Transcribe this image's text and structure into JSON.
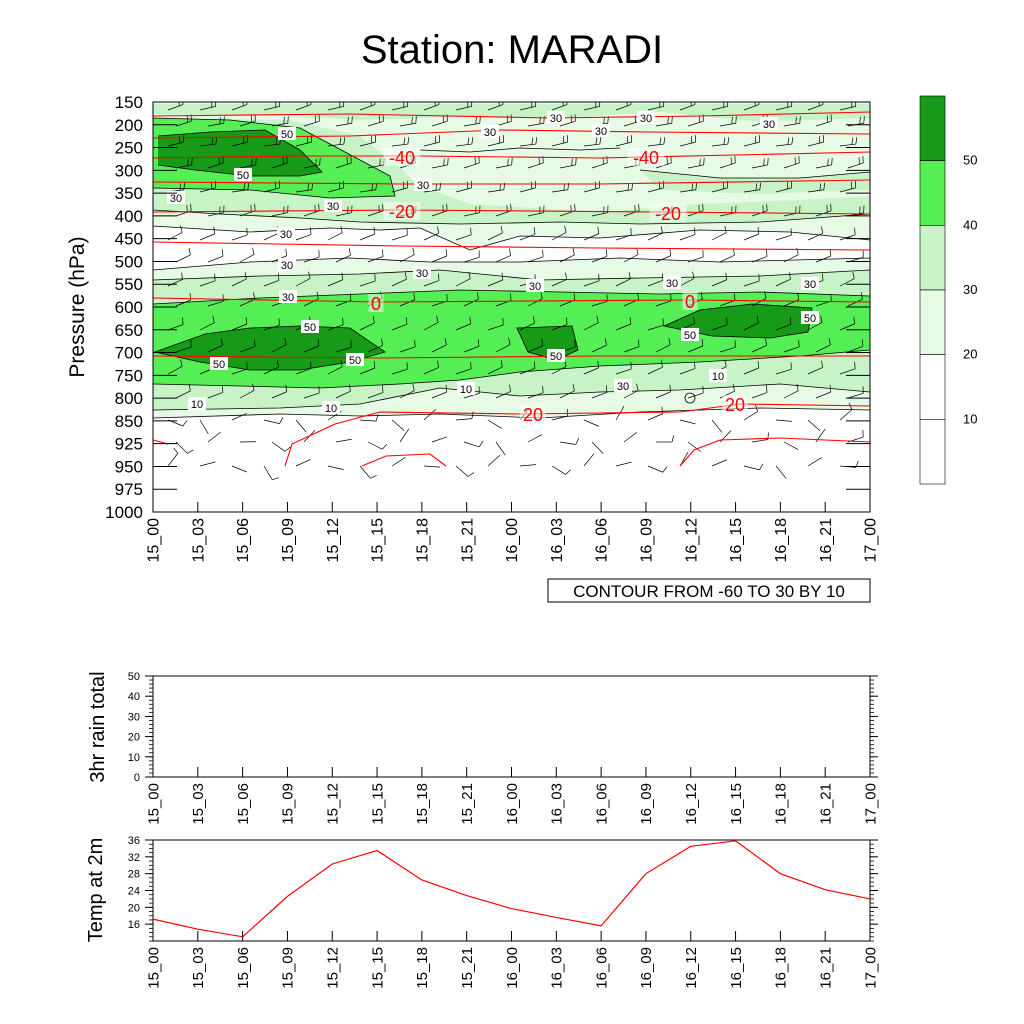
{
  "title": "Station: MARADI",
  "colors": {
    "fill_levels": [
      "#ffffff",
      "#ffffff",
      "#e6fae6",
      "#c7f3c7",
      "#55ee55",
      "#179a17"
    ],
    "isotherm": "#ff0000",
    "contour": "#000000",
    "barb": "#000000"
  },
  "time_labels": [
    "15_00",
    "15_03",
    "15_06",
    "15_09",
    "15_12",
    "15_15",
    "15_18",
    "15_21",
    "16_00",
    "16_03",
    "16_06",
    "16_09",
    "16_12",
    "16_15",
    "16_18",
    "16_21",
    "17_00"
  ],
  "chart_data": [
    {
      "type": "heatmap",
      "name": "cross-section",
      "ylabel": "Pressure (hPa)",
      "pressure_levels": [
        150,
        200,
        250,
        300,
        350,
        400,
        450,
        500,
        550,
        600,
        650,
        700,
        750,
        800,
        850,
        925,
        950,
        975,
        1000
      ],
      "contour_info": "CONTOUR FROM -60 TO 30 BY 10",
      "colorbar": {
        "ticks": [
          10,
          20,
          30,
          40,
          50
        ]
      },
      "contour_labels": [
        "50",
        "50",
        "50",
        "50",
        "50",
        "50",
        "50",
        "50",
        "30",
        "30",
        "30",
        "30",
        "30",
        "30",
        "30",
        "30",
        "30",
        "30",
        "30",
        "30",
        "30",
        "30",
        "10",
        "10",
        "10",
        "10",
        "30",
        "30"
      ],
      "isotherm_labels": [
        "-40",
        "-40",
        "-20",
        "-20",
        "0",
        "0",
        "20",
        "20"
      ]
    },
    {
      "type": "line",
      "name": "rain",
      "ylabel": "3hr rain total",
      "ylim": [
        0,
        50
      ],
      "yticks": [
        0,
        10,
        20,
        30,
        40,
        50
      ],
      "values": []
    },
    {
      "type": "line",
      "name": "temp",
      "ylabel": "Temp at 2m",
      "ylim": [
        12,
        36
      ],
      "yticks": [
        16,
        20,
        24,
        28,
        32,
        36
      ],
      "values": [
        17.2,
        14.8,
        13.0,
        22.6,
        30.3,
        33.5,
        26.5,
        22.8,
        19.7,
        17.6,
        15.6,
        28.0,
        34.5,
        35.8,
        28.0,
        24.2,
        22.0
      ]
    }
  ]
}
